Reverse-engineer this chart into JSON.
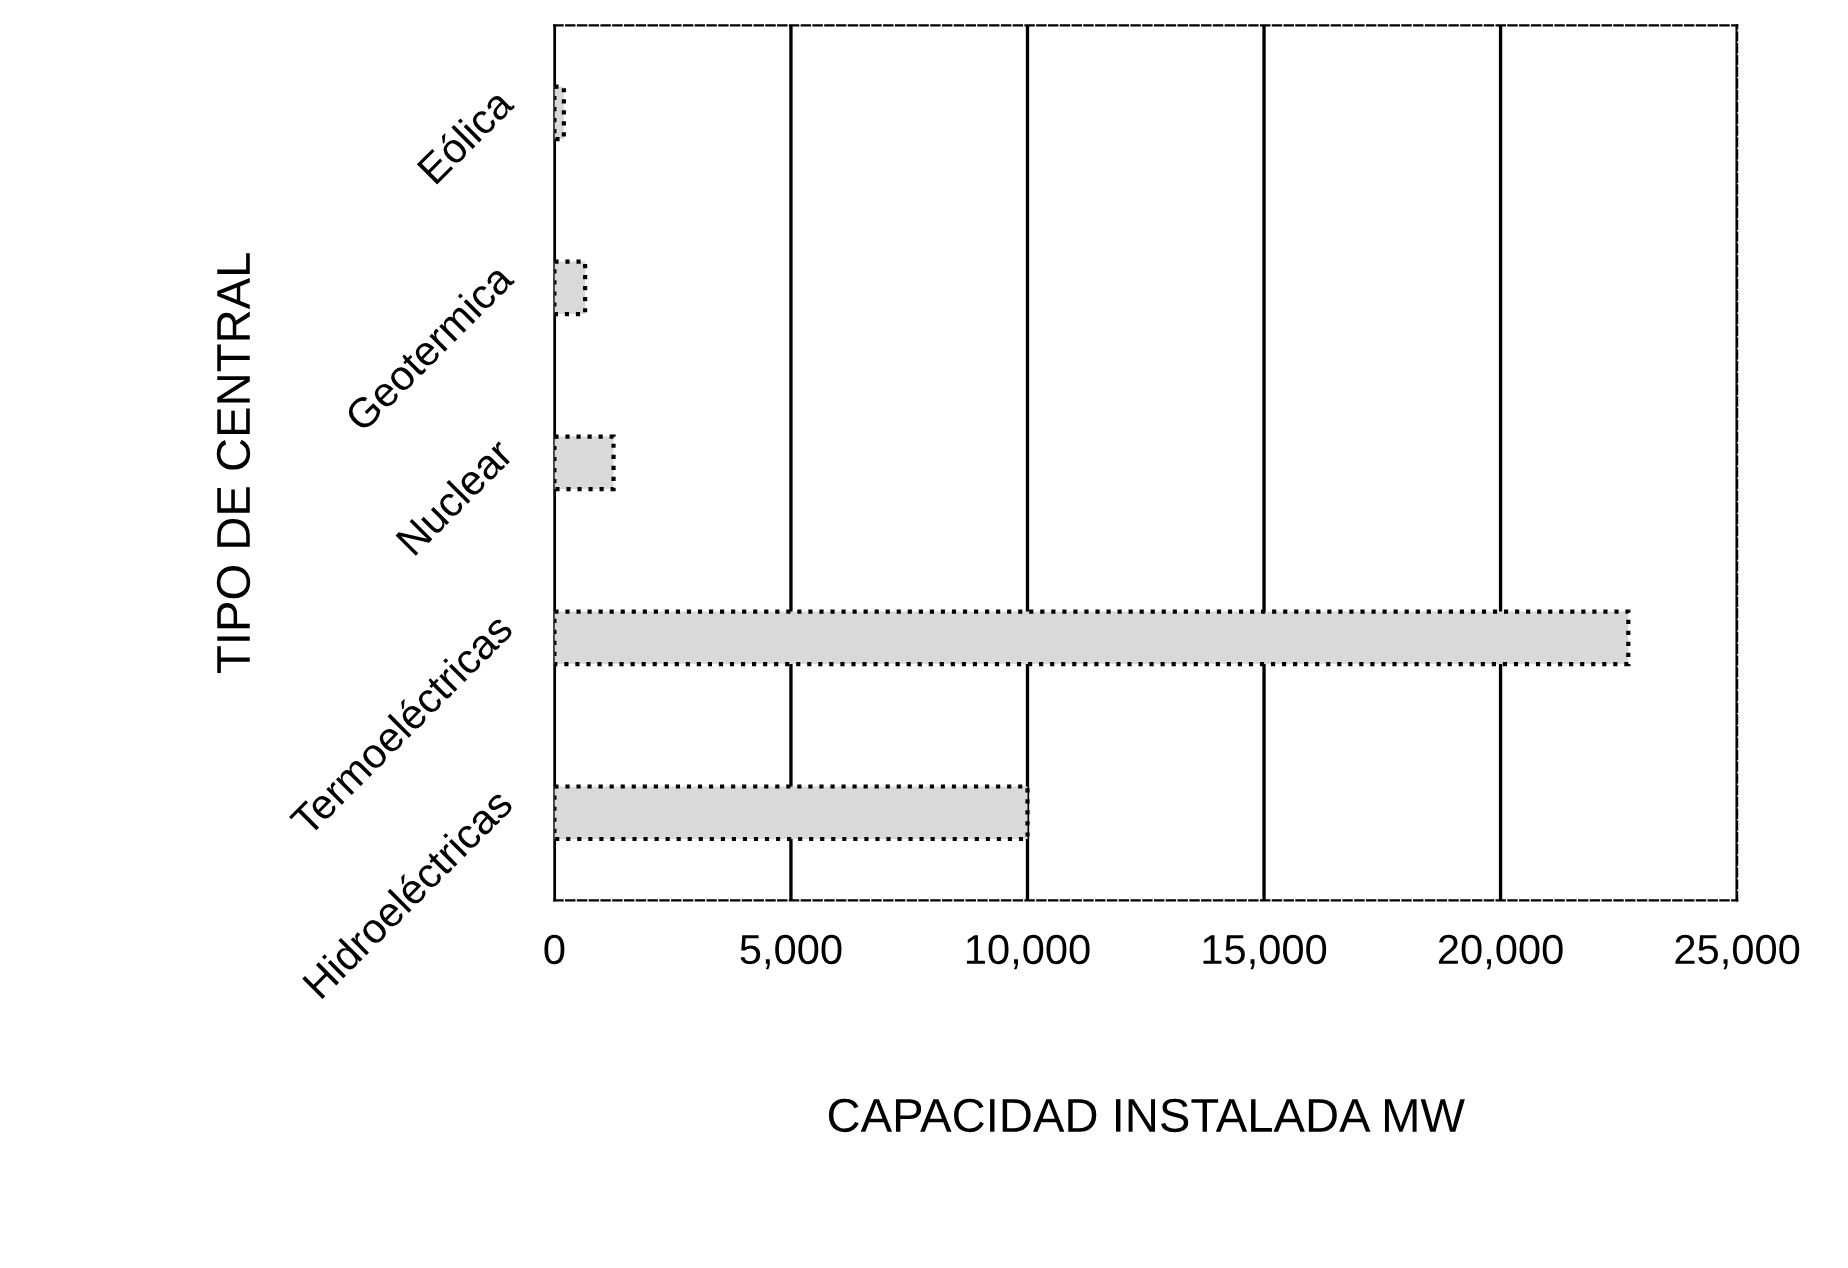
{
  "chart_data": {
    "type": "bar",
    "orientation": "horizontal",
    "categories": [
      "Eólica",
      "Geotermica",
      "Nuclear",
      "Termoeléctricas",
      "Hidroeléctricas"
    ],
    "values": [
      200,
      650,
      1250,
      22700,
      10000
    ],
    "color": "#d9d9d9",
    "xlim": [
      0,
      25000
    ],
    "xticks": [
      {
        "value": 0,
        "label": "0"
      },
      {
        "value": 5000,
        "label": "5,000"
      },
      {
        "value": 10000,
        "label": "10,000"
      },
      {
        "value": 15000,
        "label": "15,000"
      },
      {
        "value": 20000,
        "label": "20,000"
      },
      {
        "value": 25000,
        "label": "25,000"
      }
    ],
    "xlabel": "CAPACIDAD INSTALADA MW",
    "ylabel": "TIPO DE CENTRAL",
    "grid": "x"
  }
}
